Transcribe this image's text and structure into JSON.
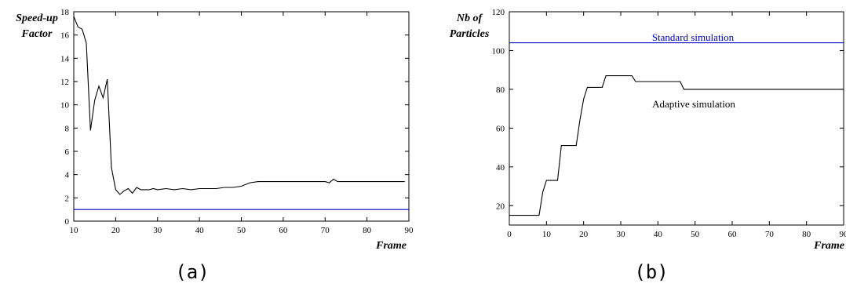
{
  "chart_data": [
    {
      "type": "line",
      "panel_label": "(a)",
      "ylabel_lines": [
        "Speed-up",
        "Factor"
      ],
      "xlabel": "Frame",
      "xlim": [
        10,
        90
      ],
      "ylim": [
        0,
        18
      ],
      "xticks": [
        10,
        20,
        30,
        40,
        50,
        60,
        70,
        80,
        90
      ],
      "yticks": [
        0,
        2,
        4,
        6,
        8,
        10,
        12,
        14,
        16,
        18
      ],
      "grid": false,
      "series": [
        {
          "color": "#000000",
          "x": [
            10,
            11,
            12,
            13,
            14,
            15,
            16,
            17,
            18,
            19,
            20,
            21,
            22,
            23,
            24,
            25,
            26,
            27,
            28,
            29,
            30,
            32,
            34,
            36,
            38,
            40,
            42,
            44,
            46,
            48,
            50,
            52,
            54,
            56,
            58,
            60,
            62,
            64,
            66,
            68,
            70,
            71,
            72,
            73,
            75,
            80,
            85,
            89
          ],
          "y": [
            17.6,
            16.7,
            16.5,
            15.3,
            7.8,
            10.4,
            11.6,
            10.6,
            12.2,
            4.6,
            2.7,
            2.3,
            2.6,
            2.8,
            2.4,
            2.9,
            2.7,
            2.7,
            2.7,
            2.8,
            2.7,
            2.8,
            2.7,
            2.8,
            2.7,
            2.8,
            2.8,
            2.8,
            2.9,
            2.9,
            3.0,
            3.3,
            3.4,
            3.4,
            3.4,
            3.4,
            3.4,
            3.4,
            3.4,
            3.4,
            3.4,
            3.3,
            3.6,
            3.4,
            3.4,
            3.4,
            3.4,
            3.4
          ]
        },
        {
          "color": "#0000cc",
          "x": [
            10,
            90
          ],
          "y": [
            1,
            1
          ]
        }
      ]
    },
    {
      "type": "line",
      "panel_label": "(b)",
      "ylabel_lines": [
        "Nb of",
        "Particles"
      ],
      "xlabel": "Frame",
      "xlim": [
        0,
        90
      ],
      "ylim": [
        10,
        120
      ],
      "xticks": [
        0,
        10,
        20,
        30,
        40,
        50,
        60,
        70,
        80,
        90
      ],
      "yticks": [
        20,
        40,
        60,
        80,
        100,
        120
      ],
      "grid": false,
      "series": [
        {
          "name": "Adaptive simulation",
          "color": "#000000",
          "x": [
            0,
            8,
            9,
            10,
            11,
            12,
            13,
            14,
            15,
            16,
            17,
            18,
            19,
            20,
            21,
            22,
            23,
            24,
            25,
            26,
            33,
            34,
            46,
            47,
            90
          ],
          "y": [
            15,
            15,
            27,
            33,
            33,
            33,
            33,
            51,
            51,
            51,
            51,
            51,
            64,
            75,
            81,
            81,
            81,
            81,
            81,
            87,
            87,
            84,
            84,
            80,
            80
          ]
        },
        {
          "name": "Standard simulation",
          "color": "#0000cc",
          "x": [
            0,
            90
          ],
          "y": [
            104,
            104
          ]
        }
      ]
    }
  ]
}
